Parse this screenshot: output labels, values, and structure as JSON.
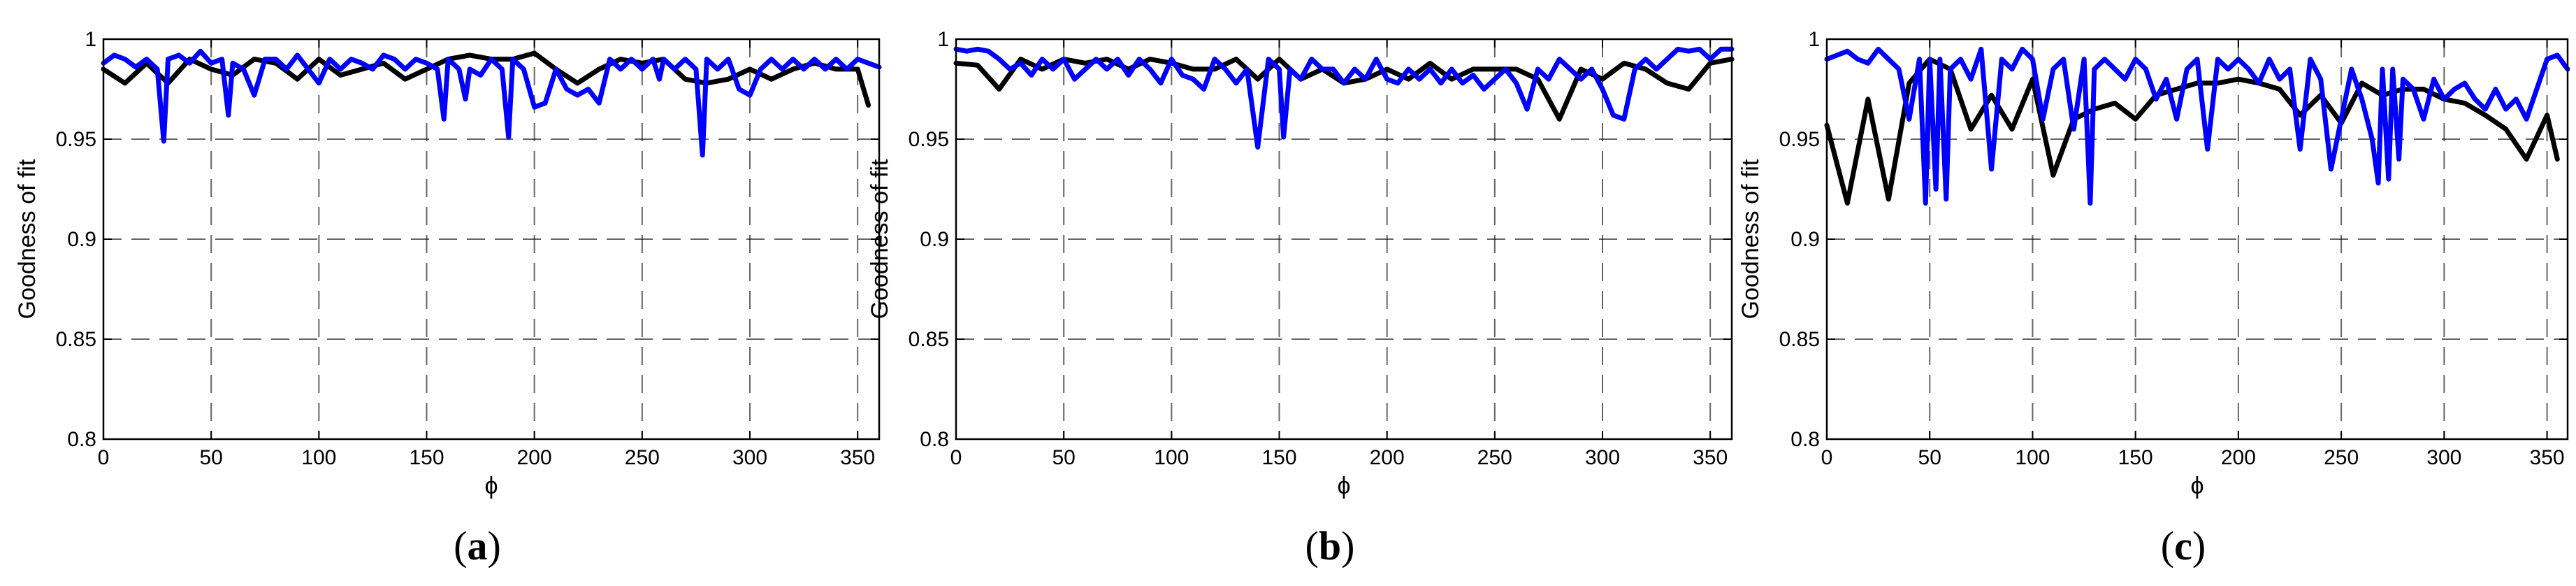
{
  "chart_data": [
    {
      "type": "line",
      "panel_label": "(a)",
      "panel_label_parts": [
        "(",
        "a",
        ")"
      ],
      "xlabel": "ϕ",
      "ylabel": "Goodness of fit",
      "xlim": [
        0,
        360
      ],
      "ylim": [
        0.8,
        1
      ],
      "xticks": [
        0,
        50,
        100,
        150,
        200,
        250,
        300,
        350
      ],
      "xtick_labels": [
        "0",
        "50",
        "100",
        "150",
        "200",
        "250",
        "300",
        "350"
      ],
      "yticks": [
        0.8,
        0.85,
        0.9,
        0.95,
        1
      ],
      "ytick_labels": [
        "0.8",
        "0.85",
        "0.9",
        "0.95",
        "1"
      ],
      "grid": true,
      "colors": {
        "black": "#000000",
        "blue": "#0000ff"
      },
      "series": [
        {
          "color": "#000000",
          "x": [
            0,
            10,
            20,
            30,
            40,
            50,
            60,
            70,
            80,
            90,
            100,
            110,
            120,
            130,
            140,
            150,
            160,
            170,
            180,
            190,
            200,
            210,
            220,
            230,
            240,
            250,
            260,
            270,
            280,
            290,
            300,
            310,
            320,
            330,
            340,
            350,
            355
          ],
          "y": [
            0.985,
            0.978,
            0.988,
            0.978,
            0.99,
            0.985,
            0.982,
            0.99,
            0.988,
            0.98,
            0.99,
            0.982,
            0.985,
            0.988,
            0.98,
            0.985,
            0.99,
            0.992,
            0.99,
            0.99,
            0.993,
            0.985,
            0.978,
            0.985,
            0.99,
            0.988,
            0.99,
            0.98,
            0.978,
            0.98,
            0.985,
            0.98,
            0.985,
            0.988,
            0.985,
            0.985,
            0.967
          ]
        },
        {
          "color": "#0000ff",
          "x": [
            0,
            5,
            10,
            15,
            20,
            25,
            28,
            30,
            35,
            40,
            45,
            50,
            55,
            58,
            60,
            65,
            70,
            75,
            80,
            85,
            90,
            95,
            100,
            105,
            110,
            115,
            120,
            125,
            130,
            135,
            140,
            145,
            150,
            155,
            158,
            160,
            165,
            168,
            170,
            175,
            180,
            185,
            188,
            190,
            195,
            200,
            205,
            210,
            215,
            220,
            225,
            230,
            235,
            240,
            245,
            250,
            255,
            258,
            260,
            265,
            270,
            275,
            278,
            280,
            285,
            290,
            295,
            300,
            305,
            310,
            315,
            320,
            325,
            330,
            335,
            340,
            345,
            350,
            355,
            360
          ],
          "y": [
            0.988,
            0.992,
            0.99,
            0.986,
            0.99,
            0.985,
            0.949,
            0.99,
            0.992,
            0.988,
            0.994,
            0.988,
            0.99,
            0.962,
            0.988,
            0.985,
            0.972,
            0.99,
            0.99,
            0.985,
            0.992,
            0.985,
            0.978,
            0.99,
            0.985,
            0.99,
            0.988,
            0.985,
            0.992,
            0.99,
            0.985,
            0.99,
            0.988,
            0.985,
            0.96,
            0.99,
            0.985,
            0.97,
            0.985,
            0.982,
            0.99,
            0.985,
            0.951,
            0.99,
            0.985,
            0.966,
            0.968,
            0.985,
            0.975,
            0.972,
            0.975,
            0.968,
            0.99,
            0.985,
            0.99,
            0.985,
            0.99,
            0.98,
            0.99,
            0.985,
            0.99,
            0.985,
            0.942,
            0.99,
            0.985,
            0.99,
            0.975,
            0.972,
            0.985,
            0.99,
            0.985,
            0.99,
            0.985,
            0.99,
            0.985,
            0.99,
            0.985,
            0.99,
            0.988,
            0.986
          ]
        }
      ]
    },
    {
      "type": "line",
      "panel_label": "(b)",
      "panel_label_parts": [
        "(",
        "b",
        ")"
      ],
      "xlabel": "ϕ",
      "ylabel": "Goodness of fit",
      "xlim": [
        0,
        360
      ],
      "ylim": [
        0.8,
        1
      ],
      "xticks": [
        0,
        50,
        100,
        150,
        200,
        250,
        300,
        350
      ],
      "xtick_labels": [
        "0",
        "50",
        "100",
        "150",
        "200",
        "250",
        "300",
        "350"
      ],
      "yticks": [
        0.8,
        0.85,
        0.9,
        0.95,
        1
      ],
      "ytick_labels": [
        "0.8",
        "0.85",
        "0.9",
        "0.95",
        "1"
      ],
      "grid": true,
      "colors": {
        "black": "#000000",
        "blue": "#0000ff"
      },
      "series": [
        {
          "color": "#000000",
          "x": [
            0,
            10,
            20,
            30,
            40,
            50,
            60,
            70,
            80,
            90,
            100,
            110,
            120,
            130,
            140,
            150,
            160,
            170,
            180,
            190,
            200,
            210,
            220,
            230,
            240,
            250,
            260,
            270,
            280,
            290,
            300,
            310,
            320,
            330,
            340,
            350,
            360
          ],
          "y": [
            0.988,
            0.987,
            0.975,
            0.99,
            0.985,
            0.99,
            0.988,
            0.99,
            0.985,
            0.99,
            0.988,
            0.985,
            0.985,
            0.99,
            0.98,
            0.99,
            0.98,
            0.985,
            0.978,
            0.98,
            0.985,
            0.98,
            0.988,
            0.98,
            0.985,
            0.985,
            0.985,
            0.98,
            0.96,
            0.985,
            0.98,
            0.988,
            0.985,
            0.978,
            0.975,
            0.988,
            0.99
          ]
        },
        {
          "color": "#0000ff",
          "x": [
            0,
            5,
            10,
            15,
            20,
            25,
            30,
            35,
            40,
            45,
            50,
            55,
            60,
            65,
            70,
            75,
            80,
            85,
            90,
            95,
            100,
            105,
            110,
            115,
            120,
            125,
            130,
            135,
            140,
            145,
            150,
            152,
            155,
            160,
            165,
            170,
            175,
            180,
            185,
            190,
            195,
            200,
            205,
            210,
            215,
            220,
            225,
            230,
            235,
            240,
            245,
            250,
            255,
            260,
            265,
            270,
            275,
            280,
            285,
            290,
            295,
            300,
            305,
            310,
            315,
            320,
            325,
            330,
            335,
            340,
            345,
            350,
            355,
            360
          ],
          "y": [
            0.995,
            0.994,
            0.995,
            0.994,
            0.99,
            0.985,
            0.988,
            0.982,
            0.99,
            0.985,
            0.99,
            0.98,
            0.985,
            0.99,
            0.985,
            0.99,
            0.982,
            0.99,
            0.985,
            0.978,
            0.99,
            0.982,
            0.98,
            0.975,
            0.99,
            0.985,
            0.978,
            0.985,
            0.946,
            0.99,
            0.985,
            0.951,
            0.985,
            0.98,
            0.99,
            0.985,
            0.985,
            0.978,
            0.985,
            0.98,
            0.99,
            0.98,
            0.978,
            0.985,
            0.98,
            0.985,
            0.978,
            0.985,
            0.978,
            0.982,
            0.975,
            0.98,
            0.985,
            0.978,
            0.965,
            0.985,
            0.98,
            0.99,
            0.985,
            0.98,
            0.985,
            0.975,
            0.962,
            0.96,
            0.985,
            0.99,
            0.985,
            0.99,
            0.995,
            0.994,
            0.995,
            0.99,
            0.995,
            0.995
          ]
        }
      ]
    },
    {
      "type": "line",
      "panel_label": "(c)",
      "panel_label_parts": [
        "(",
        "c",
        ")"
      ],
      "xlabel": "ϕ",
      "ylabel": "Goodness of fit",
      "xlim": [
        0,
        360
      ],
      "ylim": [
        0.8,
        1
      ],
      "xticks": [
        0,
        50,
        100,
        150,
        200,
        250,
        300,
        350
      ],
      "xtick_labels": [
        "0",
        "50",
        "100",
        "150",
        "200",
        "250",
        "300",
        "350"
      ],
      "yticks": [
        0.8,
        0.85,
        0.9,
        0.95,
        1
      ],
      "ytick_labels": [
        "0.8",
        "0.85",
        "0.9",
        "0.95",
        "1"
      ],
      "grid": true,
      "colors": {
        "black": "#000000",
        "blue": "#0000ff"
      },
      "series": [
        {
          "color": "#000000",
          "x": [
            0,
            10,
            20,
            30,
            40,
            50,
            60,
            70,
            80,
            90,
            100,
            110,
            120,
            130,
            140,
            150,
            160,
            170,
            180,
            190,
            200,
            210,
            220,
            230,
            240,
            250,
            260,
            270,
            280,
            290,
            300,
            310,
            320,
            330,
            340,
            350,
            355
          ],
          "y": [
            0.957,
            0.918,
            0.97,
            0.92,
            0.978,
            0.99,
            0.985,
            0.955,
            0.972,
            0.955,
            0.98,
            0.932,
            0.96,
            0.965,
            0.968,
            0.96,
            0.972,
            0.975,
            0.978,
            0.978,
            0.98,
            0.978,
            0.975,
            0.962,
            0.972,
            0.958,
            0.978,
            0.972,
            0.975,
            0.975,
            0.97,
            0.968,
            0.962,
            0.955,
            0.94,
            0.962,
            0.94
          ]
        },
        {
          "color": "#0000ff",
          "x": [
            0,
            5,
            10,
            15,
            20,
            25,
            30,
            35,
            40,
            45,
            48,
            50,
            53,
            55,
            58,
            60,
            65,
            70,
            75,
            80,
            85,
            90,
            95,
            100,
            105,
            110,
            115,
            120,
            125,
            128,
            130,
            135,
            140,
            145,
            150,
            155,
            160,
            165,
            170,
            175,
            180,
            185,
            190,
            195,
            200,
            205,
            210,
            215,
            220,
            225,
            230,
            235,
            240,
            245,
            250,
            255,
            260,
            265,
            268,
            270,
            273,
            275,
            278,
            280,
            285,
            290,
            295,
            300,
            305,
            310,
            315,
            320,
            325,
            330,
            335,
            340,
            345,
            350,
            355,
            360
          ],
          "y": [
            0.99,
            0.992,
            0.994,
            0.99,
            0.988,
            0.995,
            0.99,
            0.985,
            0.96,
            0.99,
            0.918,
            0.99,
            0.925,
            0.99,
            0.92,
            0.985,
            0.99,
            0.98,
            0.995,
            0.935,
            0.99,
            0.985,
            0.995,
            0.99,
            0.96,
            0.985,
            0.99,
            0.955,
            0.99,
            0.918,
            0.985,
            0.99,
            0.985,
            0.98,
            0.99,
            0.985,
            0.97,
            0.98,
            0.96,
            0.985,
            0.99,
            0.945,
            0.99,
            0.985,
            0.99,
            0.985,
            0.978,
            0.99,
            0.98,
            0.985,
            0.945,
            0.99,
            0.98,
            0.935,
            0.96,
            0.985,
            0.97,
            0.95,
            0.928,
            0.985,
            0.93,
            0.985,
            0.94,
            0.98,
            0.975,
            0.96,
            0.98,
            0.97,
            0.975,
            0.978,
            0.97,
            0.965,
            0.975,
            0.965,
            0.97,
            0.96,
            0.975,
            0.99,
            0.992,
            0.985
          ]
        }
      ]
    }
  ]
}
